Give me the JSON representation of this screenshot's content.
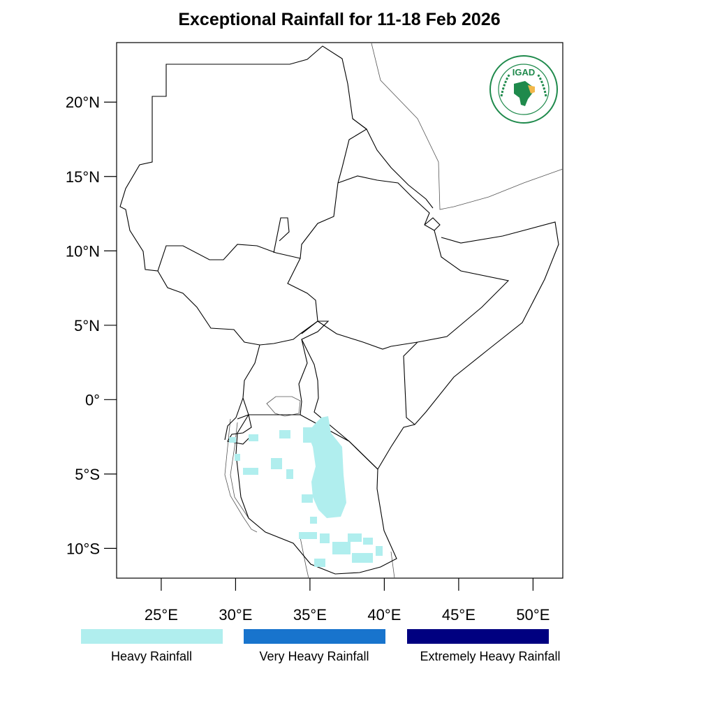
{
  "title": "Exceptional Rainfall for 11-18 Feb 2026",
  "logo": {
    "text": "IGAD",
    "ring_text_top": "INTERGOVERNMENTAL AUTHORITY ON DEVELOPMENT",
    "ring_text_bottom": "AUTORITÉ INTERGOUVERNEMENTALE POUR LE DÉVELOPPEMENT"
  },
  "map": {
    "lon_range": [
      22,
      52
    ],
    "lat_range": [
      -12,
      24
    ],
    "y_ticks": [
      {
        "lat": 20,
        "label": "20°N"
      },
      {
        "lat": 15,
        "label": "15°N"
      },
      {
        "lat": 10,
        "label": "10°N"
      },
      {
        "lat": 5,
        "label": "5°N"
      },
      {
        "lat": 0,
        "label": "0°"
      },
      {
        "lat": -5,
        "label": "5°S"
      },
      {
        "lat": -10,
        "label": "10°S"
      }
    ],
    "x_ticks": [
      {
        "lon": 25,
        "label": "25°E"
      },
      {
        "lon": 30,
        "label": "30°E"
      },
      {
        "lon": 35,
        "label": "35°E"
      },
      {
        "lon": 40,
        "label": "40°E"
      },
      {
        "lon": 45,
        "label": "45°E"
      },
      {
        "lon": 50,
        "label": "50°E"
      }
    ]
  },
  "legend": [
    {
      "label": "Heavy Rainfall",
      "color": "#b0eeee"
    },
    {
      "label": "Very Heavy Rainfall",
      "color": "#1874cd"
    },
    {
      "label": "Extremely Heavy Rainfall",
      "color": "#000080"
    }
  ]
}
